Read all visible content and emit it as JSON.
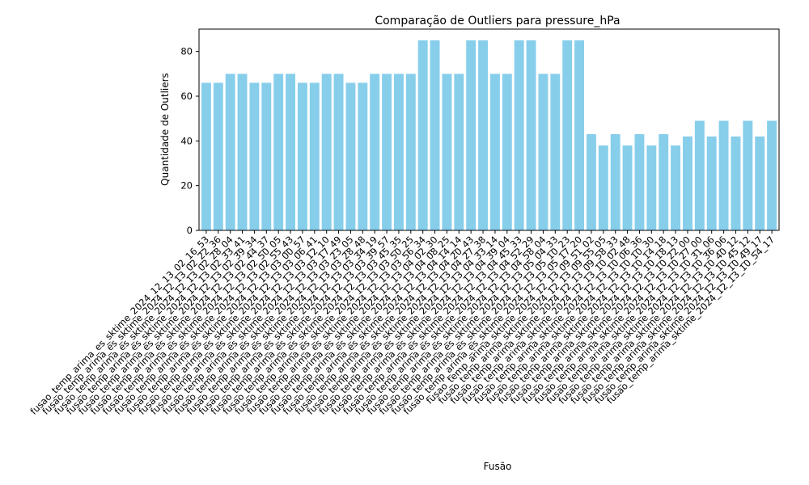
{
  "chart_data": {
    "type": "bar",
    "title": "Comparação de Outliers para pressure_hPa",
    "xlabel": "Fusão",
    "ylabel": "Quantidade de Outliers",
    "ylim": [
      0,
      90
    ],
    "yticks": [
      0,
      20,
      40,
      60,
      80
    ],
    "bar_color": "#87ceeb",
    "grid": false,
    "categories": [
      "fusao_temp_arima_es_sktime_2024_12_13_02_16_53",
      "fusao_temp_arima_es_sktime_2024_12_13_02_22_36",
      "fusao_temp_arima_es_sktime_2024_12_13_02_28_04",
      "fusao_temp_arima_es_sktime_2024_12_13_02_33_41",
      "fusao_temp_arima_es_sktime_2024_12_13_02_39_34",
      "fusao_temp_arima_es_sktime_2024_12_13_02_44_37",
      "fusao_temp_arima_es_sktime_2024_12_13_02_50_05",
      "fusao_temp_arima_es_sktime_2024_12_13_02_55_43",
      "fusao_temp_arima_es_sktime_2024_12_13_03_00_57",
      "fusao_temp_arima_es_sktime_2024_12_13_03_06_41",
      "fusao_temp_arima_es_sktime_2024_12_13_03_12_10",
      "fusao_temp_arima_es_sktime_2024_12_13_03_17_49",
      "fusao_temp_arima_es_sktime_2024_12_13_03_23_05",
      "fusao_temp_arima_es_sktime_2024_12_13_03_28_48",
      "fusao_temp_arima_es_sktime_2024_12_13_03_34_19",
      "fusao_temp_arima_es_sktime_2024_12_13_03_39_57",
      "fusao_temp_arima_es_sktime_2024_12_13_03_45_35",
      "fusao_temp_arima_es_sktime_2024_12_13_03_50_25",
      "fusao_temp_arima_es_sktime_2024_12_13_03_56_34",
      "fusao_temp_arima_es_sktime_2024_12_13_04_02_30",
      "fusao_temp_arima_es_sktime_2024_12_13_04_08_25",
      "fusao_temp_arima_es_sktime_2024_12_13_04_14_14",
      "fusao_temp_arima_es_sktime_2024_12_13_04_20_43",
      "fusao_temp_arima_es_sktime_2024_12_13_04_27_38",
      "fusao_temp_arima_es_sktime_2024_12_13_04_33_14",
      "fusao_temp_arima_es_sktime_2024_12_13_04_39_04",
      "fusao_temp_arima_es_sktime_2024_12_13_04_45_33",
      "fusao_temp_arima_es_sktime_2024_12_13_04_52_29",
      "fusao_temp_arima_es_sktime_2024_12_13_04_58_04",
      "fusao_temp_arima_es_sktime_2024_12_13_05_04_33",
      "fusao_temp_arima_es_sktime_2024_12_13_05_10_23",
      "fusao_temp_arima_es_sktime_2024_12_13_05_17_20",
      "fusao_temp_arima_sktime_2024_12_13_09_51_02",
      "fusao_temp_arima_sktime_2024_12_13_09_55_05",
      "fusao_temp_arima_sktime_2024_12_13_09_58_33",
      "fusao_temp_arima_sktime_2024_12_13_10_02_48",
      "fusao_temp_arima_sktime_2024_12_13_10_06_36",
      "fusao_temp_arima_sktime_2024_12_13_10_10_30",
      "fusao_temp_arima_sktime_2024_12_13_10_14_18",
      "fusao_temp_arima_sktime_2024_12_13_10_18_13",
      "fusao_temp_arima_sktime_2024_12_13_10_22_00",
      "fusao_temp_arima_sktime_2024_12_13_10_27_00",
      "fusao_temp_arima_sktime_2024_12_13_10_31_06",
      "fusao_temp_arima_sktime_2024_12_13_10_36_06",
      "fusao_temp_arima_sktime_2024_12_13_10_40_12",
      "fusao_temp_arima_sktime_2024_12_13_10_45_12",
      "fusao_temp_arima_sktime_2024_12_13_10_49_17",
      "fusao_temp_arima_sktime_2024_12_13_10_54_17"
    ],
    "values": [
      66,
      66,
      70,
      70,
      66,
      66,
      70,
      70,
      66,
      66,
      70,
      70,
      66,
      66,
      70,
      70,
      70,
      70,
      85,
      85,
      70,
      70,
      85,
      85,
      70,
      70,
      85,
      85,
      70,
      70,
      85,
      85,
      43,
      38,
      43,
      38,
      43,
      38,
      43,
      38,
      42,
      49,
      42,
      49,
      42,
      49,
      42,
      49
    ]
  }
}
